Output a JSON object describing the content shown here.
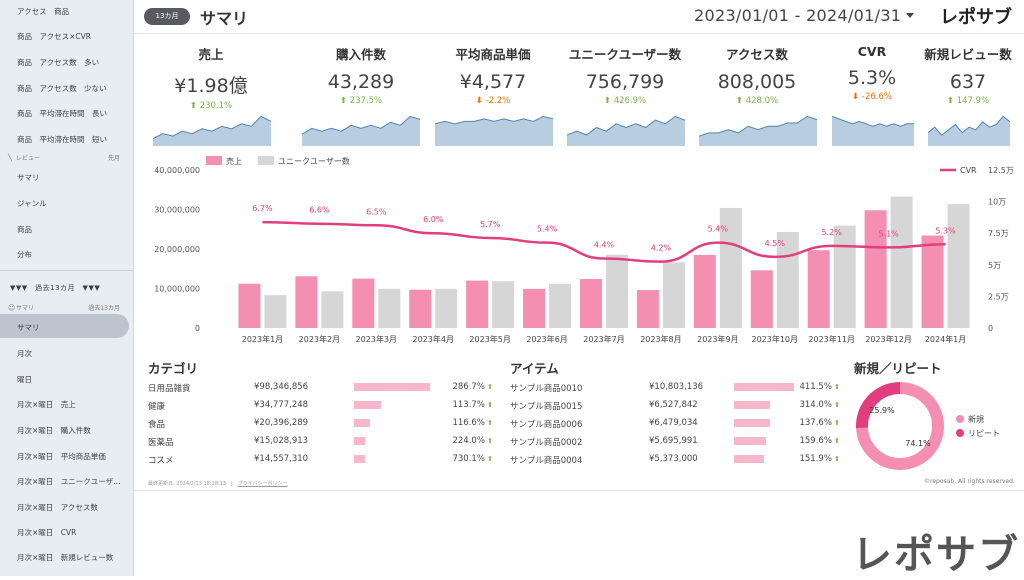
{
  "sidebar": {
    "top_items": [
      "アクセス　商品",
      "商品　アクセス×CVR",
      "商品　アクセス数　多い",
      "商品　アクセス数　少ない",
      "商品　平均滞在時間　長い",
      "商品　平均滞在時間　短い"
    ],
    "review_section": {
      "label": "レビュー",
      "right": "先月"
    },
    "review_items": [
      "サマリ",
      "ジャンル",
      "商品",
      "分布"
    ],
    "group_label": "▼▼▼　過去13カ月　▼▼▼",
    "sub_section": {
      "label": "サマリ",
      "right": "過去13カ月"
    },
    "items": [
      "サマリ",
      "月次",
      "曜日",
      "月次×曜日　売上",
      "月次×曜日　購入件数",
      "月次×曜日　平均商品単価",
      "月次×曜日　ユニークユーザ…",
      "月次×曜日　アクセス数",
      "月次×曜日　CVR",
      "月次×曜日　新規レビュー数"
    ]
  },
  "header": {
    "period_badge": "13カ月",
    "title": "サマリ",
    "date_range": "2023/01/01 - 2024/01/31",
    "brand": "レポサブ"
  },
  "kpis": [
    {
      "label": "売上",
      "value": "¥1.98億",
      "change": "230.1%",
      "dir": "up",
      "spark": [
        3,
        5,
        4,
        6,
        5,
        7,
        6,
        8,
        7,
        9,
        8,
        12,
        10
      ]
    },
    {
      "label": "購入件数",
      "value": "43,289",
      "change": "237.5%",
      "dir": "up",
      "spark": [
        4,
        6,
        5,
        6,
        5,
        7,
        6,
        7,
        6,
        8,
        7,
        10,
        9
      ]
    },
    {
      "label": "平均商品単価",
      "value": "¥4,577",
      "change": "-2.2%",
      "dir": "down",
      "spark": [
        9,
        10,
        9,
        10,
        10,
        11,
        10,
        11,
        10,
        11,
        10,
        12,
        11
      ]
    },
    {
      "label": "ユニークユーザー数",
      "value": "756,799",
      "change": "426.9%",
      "dir": "up",
      "spark": [
        3,
        4,
        3,
        5,
        4,
        6,
        5,
        6,
        5,
        7,
        6,
        8,
        7
      ]
    },
    {
      "label": "アクセス数",
      "value": "808,005",
      "change": "428.0%",
      "dir": "up",
      "spark": [
        3,
        4,
        4,
        5,
        4,
        6,
        5,
        6,
        6,
        7,
        7,
        9,
        8
      ]
    },
    {
      "label": "CVR",
      "value": "5.3%",
      "change": "-26.6%",
      "dir": "down",
      "spark": [
        12,
        11,
        10,
        9,
        10,
        9,
        8,
        9,
        8,
        9,
        8,
        9,
        9
      ]
    },
    {
      "label": "新規レビュー数",
      "value": "637",
      "change": "147.9%",
      "dir": "up",
      "spark": [
        5,
        7,
        4,
        6,
        8,
        5,
        7,
        6,
        9,
        7,
        8,
        11,
        9
      ]
    }
  ],
  "colors": {
    "sales": "#f48fb1",
    "users": "#d6d6d6",
    "cvr": "#e23d7f",
    "spark_fill": "#b8cde0",
    "spark_line": "#4f86b3",
    "up": "#7cb342",
    "down": "#ef6c00",
    "bar": "#f6b7cb",
    "new": "#f48fb1",
    "repeat": "#e23d7f"
  },
  "chart_data": [
    {
      "type": "bar",
      "title": "",
      "legend": [
        "売上",
        "ユニークユーザー数",
        "CVR"
      ],
      "categories": [
        "2023年1月",
        "2023年2月",
        "2023年3月",
        "2023年4月",
        "2023年5月",
        "2023年6月",
        "2023年7月",
        "2023年8月",
        "2023年9月",
        "2023年10月",
        "2023年11月",
        "2023年12月",
        "2024年1月"
      ],
      "series": [
        {
          "name": "売上",
          "axis": "left",
          "values": [
            11200000,
            13100000,
            12500000,
            9700000,
            12000000,
            9900000,
            12400000,
            9600000,
            18500000,
            14600000,
            19700000,
            29800000,
            23400000
          ]
        },
        {
          "name": "ユニークユーザー数",
          "axis": "right",
          "values": [
            26000,
            29000,
            31000,
            31000,
            37000,
            35000,
            58000,
            52000,
            95000,
            76000,
            81000,
            104000,
            98000
          ]
        },
        {
          "name": "CVR",
          "axis": "right_pct",
          "type": "line",
          "values": [
            6.7,
            6.6,
            6.5,
            6.0,
            5.7,
            5.4,
            4.4,
            4.2,
            5.4,
            4.5,
            5.2,
            5.1,
            5.3
          ],
          "labels": [
            "6.7%",
            "6.6%",
            "6.5%",
            "6.0%",
            "5.7%",
            "5.4%",
            "4.4%",
            "4.2%",
            "5.4%",
            "4.5%",
            "5.2%",
            "5.1%",
            "5.3%"
          ]
        }
      ],
      "y_left": {
        "ticks": [
          "0",
          "10,000,000",
          "20,000,000",
          "30,000,000",
          "40,000,000"
        ],
        "max": 40000000
      },
      "y_right": {
        "ticks": [
          "0",
          "2.5万",
          "5万",
          "7.5万",
          "10万",
          "12.5万"
        ],
        "max": 125000
      },
      "cvr_scale": {
        "min": 0,
        "max": 10
      }
    },
    {
      "type": "pie",
      "title": "新規／リピート",
      "labels": [
        "新規",
        "リピート"
      ],
      "values": [
        74.1,
        25.9
      ],
      "value_labels": [
        "74.1%",
        "25.9%"
      ]
    }
  ],
  "categories_table": {
    "title": "カテゴリ",
    "rows": [
      {
        "name": "日用品雑貨",
        "value": "¥98,346,856",
        "bar": 1.0,
        "pct": "286.7%"
      },
      {
        "name": "健康",
        "value": "¥34,777,248",
        "bar": 0.35,
        "pct": "113.7%"
      },
      {
        "name": "食品",
        "value": "¥20,396,289",
        "bar": 0.21,
        "pct": "116.6%"
      },
      {
        "name": "医薬品",
        "value": "¥15,028,913",
        "bar": 0.15,
        "pct": "224.0%"
      },
      {
        "name": "コスメ",
        "value": "¥14,557,310",
        "bar": 0.15,
        "pct": "730.1%"
      }
    ]
  },
  "items_table": {
    "title": "アイテム",
    "rows": [
      {
        "name": "サンプル商品0010",
        "value": "¥10,803,136",
        "bar": 1.0,
        "pct": "411.5%"
      },
      {
        "name": "サンプル商品0015",
        "value": "¥6,527,842",
        "bar": 0.6,
        "pct": "314.0%"
      },
      {
        "name": "サンプル商品0006",
        "value": "¥6,479,034",
        "bar": 0.6,
        "pct": "137.6%"
      },
      {
        "name": "サンプル商品0002",
        "value": "¥5,695,991",
        "bar": 0.53,
        "pct": "159.6%"
      },
      {
        "name": "サンプル商品0004",
        "value": "¥5,373,000",
        "bar": 0.5,
        "pct": "151.9%"
      }
    ]
  },
  "footer": {
    "updated": "最終更新日: 2024/2/13 18:28:13",
    "privacy": "プライバシーポリシー",
    "copyright": "©reposub. All rights reserved.",
    "brand_large": "レポサブ"
  }
}
